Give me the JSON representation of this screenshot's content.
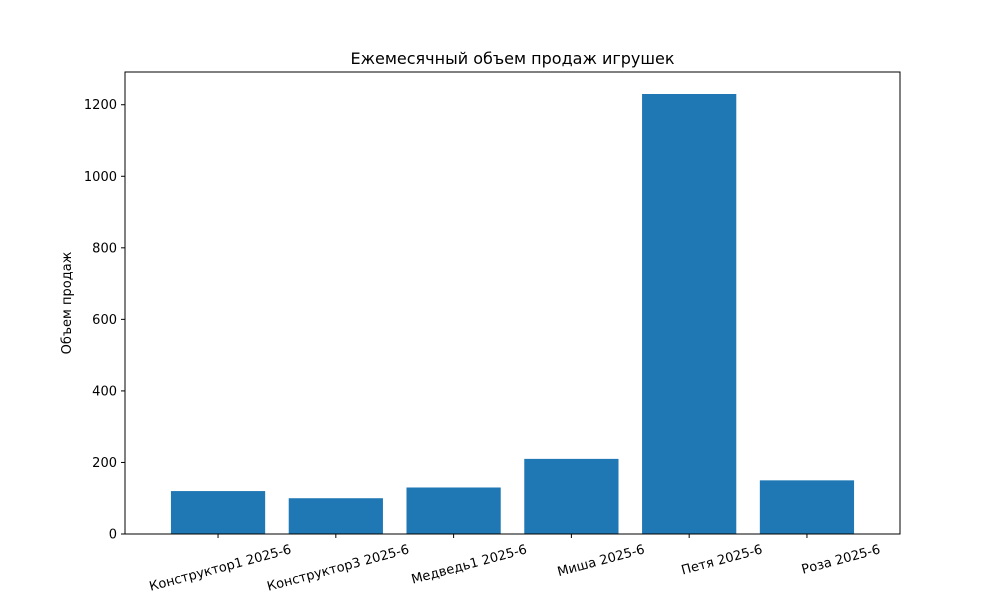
{
  "chart_data": {
    "type": "bar",
    "title": "Ежемесячный объем продаж игрушек",
    "xlabel": "",
    "ylabel": "Объем продаж",
    "categories": [
      "Конструктор1 2025-6",
      "Конструктор3 2025-6",
      "Медведь1 2025-6",
      "Миша 2025-6",
      "Петя 2025-6",
      "Роза 2025-6"
    ],
    "values": [
      120,
      100,
      130,
      210,
      1230,
      150
    ],
    "ylim": [
      0,
      1291.5
    ],
    "yticks": [
      0,
      200,
      400,
      600,
      800,
      1000,
      1200
    ],
    "bar_color": "#1f77b4",
    "grid": false,
    "legend": "none"
  }
}
